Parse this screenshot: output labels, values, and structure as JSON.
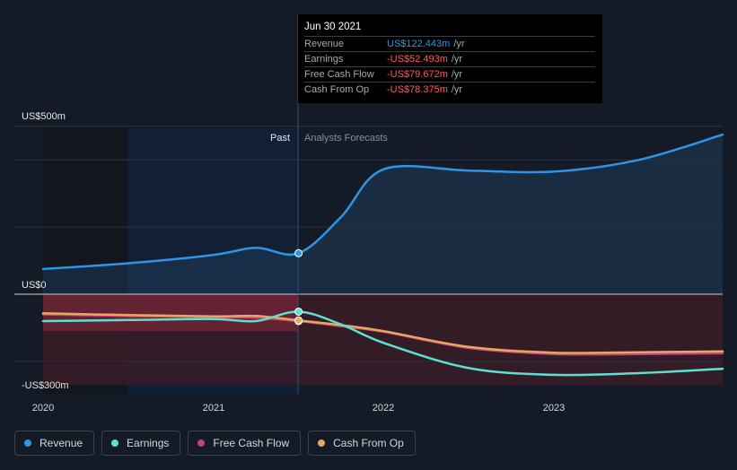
{
  "tooltip": {
    "date": "Jun 30 2021",
    "rows": [
      {
        "label": "Revenue",
        "value": "US$122.443m",
        "unit": "/yr"
      },
      {
        "label": "Earnings",
        "value": "-US$52.493m",
        "unit": "/yr"
      },
      {
        "label": "Free Cash Flow",
        "value": "-US$79.672m",
        "unit": "/yr"
      },
      {
        "label": "Cash From Op",
        "value": "-US$78.375m",
        "unit": "/yr"
      }
    ]
  },
  "legend": [
    {
      "label": "Revenue",
      "color": "#2e95e6"
    },
    {
      "label": "Earnings",
      "color": "#5ce0d0"
    },
    {
      "label": "Free Cash Flow",
      "color": "#c2457a"
    },
    {
      "label": "Cash From Op",
      "color": "#e6a860"
    }
  ],
  "chart_data": {
    "type": "line",
    "y_tick_labels": [
      "US$500m",
      "US$0",
      "-US$300m"
    ],
    "x_tick_labels": [
      "2020",
      "2021",
      "2022",
      "2023"
    ],
    "ylim": [
      -300,
      500
    ],
    "xlim": [
      2020.0,
      2023.99
    ],
    "past_label": "Past",
    "forecast_label": "Analysts Forecasts",
    "highlight_x": 2021.5,
    "colors": {
      "positive_fill": "#1f3550",
      "negative_fill": "#4a2230"
    },
    "series": [
      {
        "name": "Revenue",
        "color": "#2e95e6",
        "x": [
          2020.0,
          2020.5,
          2021.0,
          2021.25,
          2021.5,
          2021.75,
          2022.0,
          2022.5,
          2023.0,
          2023.5,
          2023.99
        ],
        "y": [
          75,
          92,
          117,
          138,
          122,
          230,
          372,
          368,
          365,
          400,
          475
        ]
      },
      {
        "name": "Earnings",
        "color": "#5ce0d0",
        "x": [
          2020.0,
          2020.5,
          2021.0,
          2021.25,
          2021.5,
          2021.75,
          2022.0,
          2022.5,
          2023.0,
          2023.5,
          2023.99
        ],
        "y": [
          -80,
          -77,
          -74,
          -80,
          -52,
          -90,
          -145,
          -220,
          -240,
          -235,
          -222
        ]
      },
      {
        "name": "Free Cash Flow",
        "color": "#c2457a",
        "x": [
          2020.0,
          2020.5,
          2021.0,
          2021.25,
          2021.5,
          2021.75,
          2022.0,
          2022.5,
          2023.0,
          2023.5,
          2023.99
        ],
        "y": [
          -60,
          -65,
          -68,
          -70,
          -80,
          -95,
          -112,
          -160,
          -178,
          -178,
          -176
        ]
      },
      {
        "name": "Cash From Op",
        "color": "#e6a860",
        "x": [
          2020.0,
          2020.5,
          2021.0,
          2021.25,
          2021.5,
          2021.75,
          2022.0,
          2022.5,
          2023.0,
          2023.5,
          2023.99
        ],
        "y": [
          -57,
          -62,
          -66,
          -65,
          -78,
          -92,
          -110,
          -157,
          -174,
          -173,
          -170
        ]
      }
    ]
  }
}
